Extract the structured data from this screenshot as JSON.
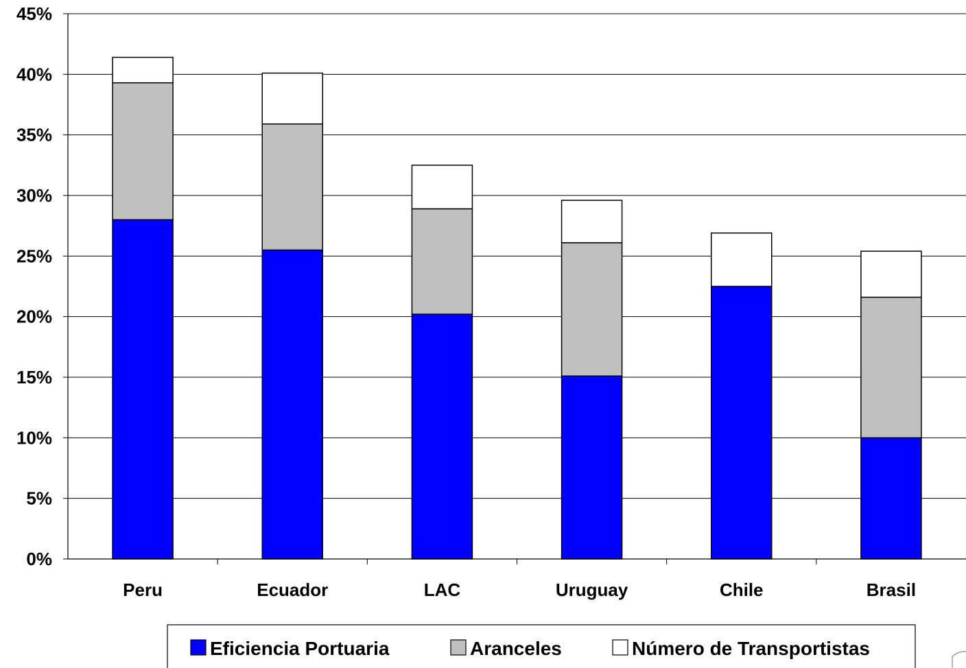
{
  "chart_data": {
    "type": "bar",
    "stacked": true,
    "categories": [
      "Peru",
      "Ecuador",
      "LAC",
      "Uruguay",
      "Chile",
      "Brasil"
    ],
    "series": [
      {
        "name": "Eficiencia Portuaria",
        "color": "#0000ff",
        "values": [
          28.0,
          25.5,
          20.2,
          15.1,
          22.5,
          10.0
        ]
      },
      {
        "name": "Aranceles",
        "color": "#c0c0c0",
        "values": [
          11.3,
          10.4,
          8.7,
          11.0,
          0.0,
          11.6
        ]
      },
      {
        "name": "Número de Transportistas",
        "color": "#ffffff",
        "values": [
          2.1,
          4.2,
          3.6,
          3.5,
          4.4,
          3.8
        ]
      }
    ],
    "ylim": [
      0,
      45
    ],
    "yticks": [
      "0%",
      "5%",
      "10%",
      "15%",
      "20%",
      "25%",
      "30%",
      "35%",
      "40%",
      "45%"
    ],
    "ytick_values": [
      0,
      5,
      10,
      15,
      20,
      25,
      30,
      35,
      40,
      45
    ],
    "grid": true,
    "legend_position": "bottom"
  }
}
